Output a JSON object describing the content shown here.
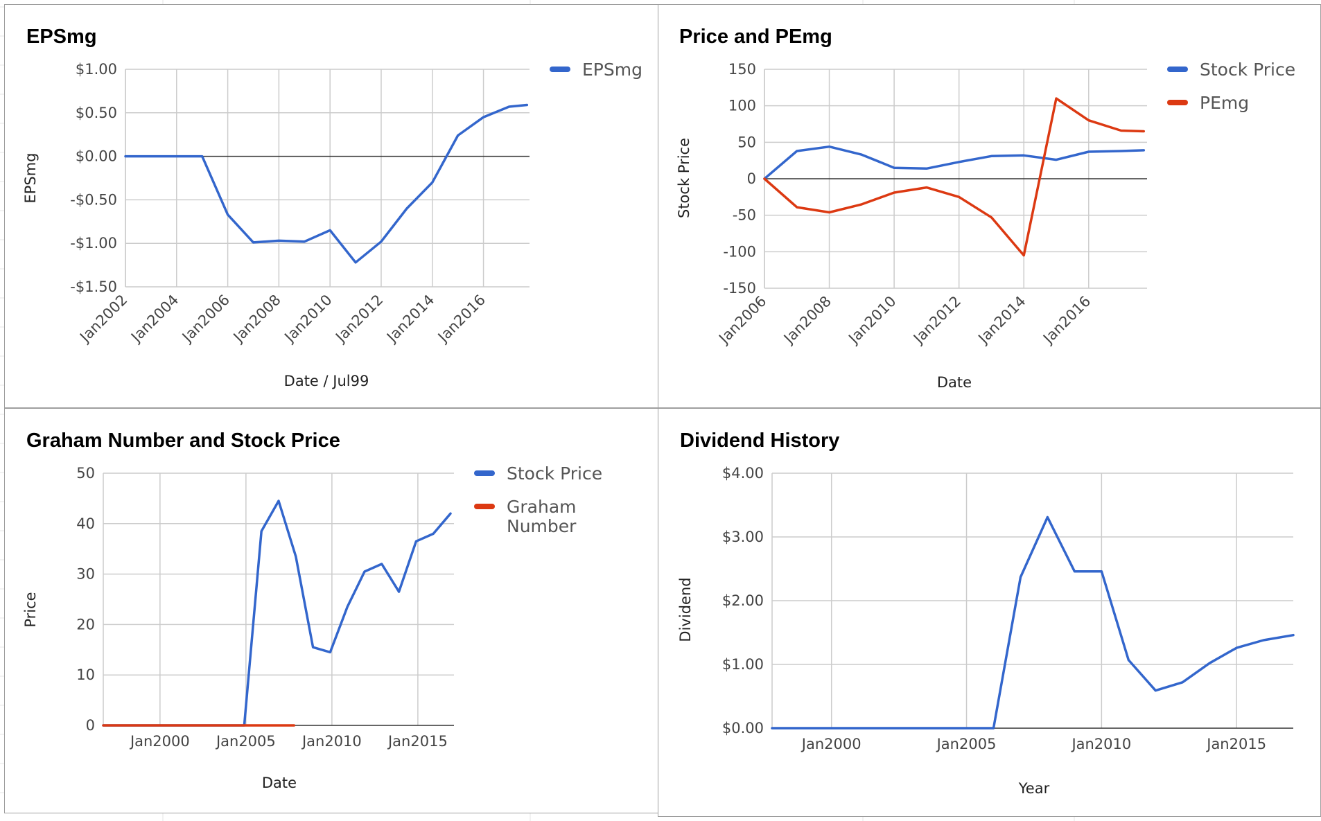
{
  "chart_data": [
    {
      "id": "eps",
      "type": "line",
      "title": "EPSmg",
      "xlabel": "Date / Jul99",
      "ylabel": "EPSmg",
      "x_tick_labels": [
        "Jan2002",
        "Jan2004",
        "Jan2006",
        "Jan2008",
        "Jan2010",
        "Jan2012",
        "Jan2014",
        "Jan2016"
      ],
      "x_tick_years": [
        2002,
        2004,
        2006,
        2008,
        2010,
        2012,
        2014,
        2016
      ],
      "xlim": [
        2002,
        2017.8
      ],
      "y_tick_labels": [
        "$1.00",
        "$0.50",
        "$0.00",
        "-$0.50",
        "-$1.00",
        "-$1.50"
      ],
      "y_ticks": [
        1.0,
        0.5,
        0.0,
        -0.5,
        -1.0,
        -1.5
      ],
      "ylim": [
        -1.5,
        1.0
      ],
      "legend_position": "right",
      "series": [
        {
          "name": "EPSmg",
          "color": "#3366cc",
          "x": [
            2002,
            2003,
            2004,
            2005,
            2006,
            2007,
            2008,
            2009,
            2010,
            2011,
            2012,
            2013,
            2014,
            2015,
            2016,
            2017,
            2017.7
          ],
          "values": [
            0.0,
            0.0,
            0.0,
            0.0,
            -0.67,
            -0.99,
            -0.97,
            -0.98,
            -0.85,
            -1.22,
            -0.98,
            -0.6,
            -0.3,
            0.24,
            0.45,
            0.57,
            0.59
          ]
        }
      ]
    },
    {
      "id": "pe",
      "type": "line",
      "title": "Price and PEmg",
      "xlabel": "Date",
      "ylabel": "Stock Price",
      "x_tick_labels": [
        "Jan2006",
        "Jan2008",
        "Jan2010",
        "Jan2012",
        "Jan2014",
        "Jan2016"
      ],
      "x_tick_years": [
        2006,
        2008,
        2010,
        2012,
        2014,
        2016
      ],
      "xlim": [
        2006,
        2017.8
      ],
      "y_tick_labels": [
        "150",
        "100",
        "50",
        "0",
        "-50",
        "-100",
        "-150"
      ],
      "y_ticks": [
        150,
        100,
        50,
        0,
        -50,
        -100,
        -150
      ],
      "ylim": [
        -150,
        150
      ],
      "legend_position": "right",
      "series": [
        {
          "name": "Stock Price",
          "color": "#3366cc",
          "x": [
            2006,
            2007,
            2008,
            2009,
            2010,
            2011,
            2012,
            2013,
            2014,
            2015,
            2016,
            2017,
            2017.7
          ],
          "values": [
            0,
            38,
            44,
            33,
            15,
            14,
            23,
            31,
            32,
            26,
            37,
            38,
            39
          ]
        },
        {
          "name": "PEmg",
          "color": "#dc3912",
          "x": [
            2006,
            2007,
            2008,
            2009,
            2010,
            2011,
            2012,
            2013,
            2014,
            2015,
            2016,
            2017,
            2017.7
          ],
          "values": [
            0,
            -39,
            -46,
            -35,
            -19,
            -12,
            -25,
            -53,
            -105,
            110,
            80,
            66,
            65
          ]
        }
      ]
    },
    {
      "id": "graham",
      "type": "line",
      "title": "Graham Number and Stock Price",
      "xlabel": "Date",
      "ylabel": "Price",
      "x_tick_labels": [
        "Jan2000",
        "Jan2005",
        "Jan2010",
        "Jan2015"
      ],
      "x_tick_years": [
        2000,
        2005,
        2010,
        2015
      ],
      "xlim": [
        1996.7,
        2017.1
      ],
      "y_tick_labels": [
        "50",
        "40",
        "30",
        "20",
        "10",
        "0"
      ],
      "y_ticks": [
        50,
        40,
        30,
        20,
        10,
        0
      ],
      "ylim": [
        0,
        50
      ],
      "legend_position": "right",
      "series": [
        {
          "name": "Stock Price",
          "color": "#3366cc",
          "x": [
            1996.7,
            2004.9,
            2005.9,
            2006.9,
            2007.9,
            2008.9,
            2009.9,
            2010.9,
            2011.9,
            2012.9,
            2013.9,
            2014.9,
            2015.9,
            2016.9
          ],
          "values": [
            0,
            0,
            38.5,
            44.5,
            33.5,
            15.5,
            14.5,
            23.5,
            30.5,
            32,
            26.5,
            36.5,
            38,
            42
          ]
        },
        {
          "name": "Graham Number",
          "color": "#dc3912",
          "x": [
            1996.7,
            2004.9,
            2007.8
          ],
          "values": [
            0,
            0,
            0
          ]
        }
      ]
    },
    {
      "id": "div",
      "type": "line",
      "title": "Dividend History",
      "xlabel": "Year",
      "ylabel": "Dividend",
      "x_tick_labels": [
        "Jan2000",
        "Jan2005",
        "Jan2010",
        "Jan2015"
      ],
      "x_tick_years": [
        2000,
        2005,
        2010,
        2015
      ],
      "xlim": [
        1997.8,
        2017.1
      ],
      "y_tick_labels": [
        "$4.00",
        "$3.00",
        "$2.00",
        "$1.00",
        "$0.00"
      ],
      "y_ticks": [
        4,
        3,
        2,
        1,
        0
      ],
      "ylim": [
        0,
        4
      ],
      "legend_position": "none",
      "series": [
        {
          "name": "",
          "color": "#3366cc",
          "x": [
            1997.8,
            2006,
            2007,
            2008,
            2009,
            2010,
            2011,
            2012,
            2013,
            2014,
            2015,
            2016,
            2017.1
          ],
          "values": [
            0,
            0,
            2.37,
            3.31,
            2.46,
            2.46,
            1.07,
            0.59,
            0.72,
            1.02,
            1.26,
            1.38,
            1.46
          ]
        }
      ]
    }
  ]
}
